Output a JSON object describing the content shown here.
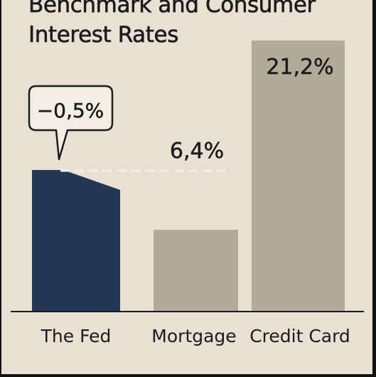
{
  "title_lines": [
    "Benchmark and Consumer",
    "Interest Rates"
  ],
  "colors": {
    "background": "#e7e0d3",
    "fed_bar": "#223753",
    "consumer_bar": "#b3aa9a",
    "text": "#1c1c1c",
    "callout_fill": "#f3eee4",
    "dashed_line": "#f3eee4"
  },
  "chart_data": {
    "type": "bar",
    "title": "Benchmark and Consumer Interest Rates",
    "categories": [
      "The Fed",
      "Mortgage",
      "Credit Card"
    ],
    "values": [
      -0.5,
      6.4,
      21.2
    ],
    "value_labels": [
      "−0,5%",
      "6,4%",
      "21,2%"
    ],
    "xlabel": "",
    "ylabel": "",
    "grid": false,
    "legend": "none",
    "annotations": [
      "−0,5%"
    ]
  }
}
